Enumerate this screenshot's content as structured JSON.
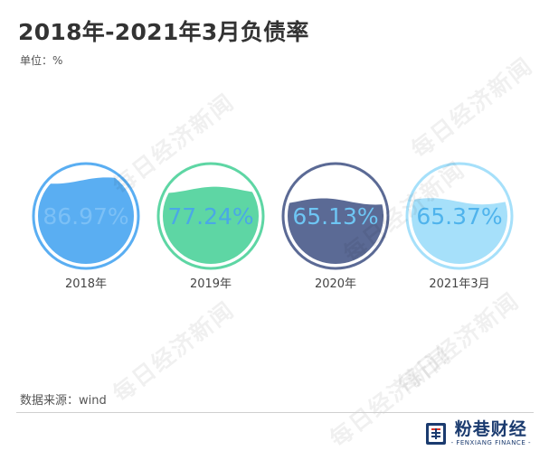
{
  "title": "2018年-2021年3月负债率",
  "unit_label": "单位：%",
  "source_label": "数据来源：wind",
  "watermark": "每日经济新闻",
  "brand": {
    "name": "粉巷财经",
    "english": "- FENXIANG FINANCE -"
  },
  "chart_data": {
    "type": "bar",
    "subtype": "liquid-fill",
    "categories": [
      "2018年",
      "2019年",
      "2020年",
      "2021年3月"
    ],
    "values": [
      86.97,
      77.24,
      65.13,
      65.37
    ],
    "labels": [
      "86.97%",
      "77.24%",
      "65.13%",
      "65.37%"
    ],
    "ylim": [
      0,
      100
    ],
    "colors": [
      "#5aaef2",
      "#5ed6a4",
      "#5b6a95",
      "#a6e0fa"
    ],
    "ring_colors": [
      "#5aaef2",
      "#5ed6a4",
      "#5b6a95",
      "#a6e0fa"
    ],
    "label_colors": [
      "#7cc0f6",
      "#4aa8e6",
      "#6ec6f4",
      "#4fb3ec"
    ],
    "xlabel": "",
    "ylabel": ""
  }
}
